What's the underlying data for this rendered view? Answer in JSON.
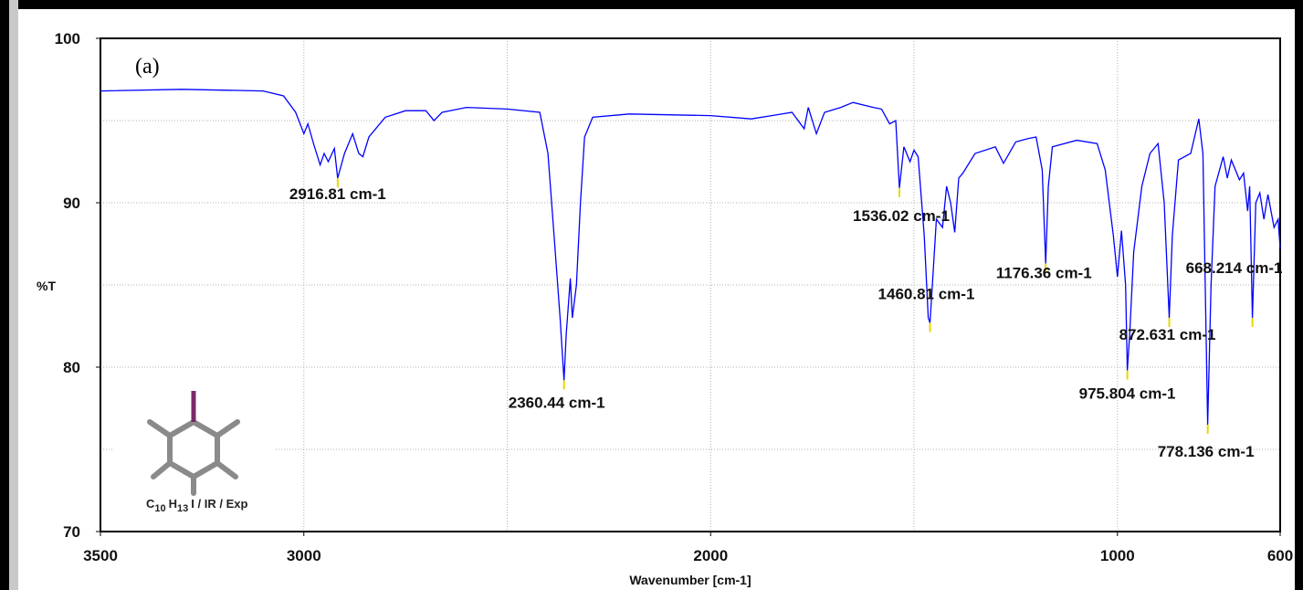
{
  "chart_data": {
    "type": "line",
    "panel_label": "(a)",
    "ylabel": "%T",
    "xlabel": "Wavenumber [cm-1]",
    "color": "#0000ff",
    "xlim": [
      3500,
      600
    ],
    "ylim": [
      70,
      100
    ],
    "xticks": [
      3500,
      3000,
      2000,
      1000,
      600
    ],
    "yticks": [
      70,
      80,
      90,
      100
    ],
    "xgrid": [
      3000,
      2500,
      2000,
      1500,
      1000
    ],
    "ygrid": [
      75,
      80,
      85,
      90,
      95
    ],
    "x": [
      3500,
      3300,
      3100,
      3050,
      3020,
      3000,
      2990,
      2975,
      2960,
      2950,
      2940,
      2925,
      2916.81,
      2900,
      2880,
      2865,
      2855,
      2840,
      2800,
      2750,
      2700,
      2680,
      2660,
      2600,
      2500,
      2420,
      2400,
      2385,
      2370,
      2360.44,
      2355,
      2345,
      2340,
      2330,
      2320,
      2310,
      2290,
      2200,
      2000,
      1900,
      1850,
      1800,
      1770,
      1760,
      1740,
      1720,
      1680,
      1650,
      1600,
      1580,
      1560,
      1545,
      1536.02,
      1525,
      1510,
      1500,
      1490,
      1475,
      1465,
      1460.81,
      1455,
      1445,
      1430,
      1420,
      1410,
      1400,
      1390,
      1380,
      1350,
      1300,
      1280,
      1250,
      1220,
      1200,
      1185,
      1176.36,
      1170,
      1160,
      1100,
      1050,
      1030,
      1010,
      1000,
      990,
      980,
      975.804,
      970,
      960,
      940,
      920,
      900,
      885,
      872.631,
      865,
      850,
      820,
      800,
      790,
      778.136,
      770,
      760,
      740,
      730,
      720,
      700,
      690,
      680,
      675,
      668.214,
      660,
      650,
      640,
      630,
      615,
      605,
      600
    ],
    "values": [
      96.8,
      96.9,
      96.8,
      96.5,
      95.5,
      94.2,
      94.8,
      93.5,
      92.3,
      93.0,
      92.5,
      93.3,
      91.5,
      93.0,
      94.2,
      93.0,
      92.8,
      94.0,
      95.2,
      95.6,
      95.6,
      95.0,
      95.5,
      95.8,
      95.7,
      95.5,
      93,
      88,
      83,
      79.2,
      82,
      85.4,
      83,
      85,
      90,
      94,
      95.2,
      95.4,
      95.3,
      95.1,
      95.3,
      95.5,
      94.5,
      95.8,
      94.2,
      95.5,
      95.8,
      96.1,
      95.8,
      95.7,
      94.8,
      95.0,
      90.9,
      93.4,
      92.5,
      93.2,
      92.8,
      88,
      83,
      82.7,
      85,
      89,
      88.5,
      91,
      90,
      88.2,
      91.5,
      91.8,
      93,
      93.4,
      92.4,
      93.7,
      93.9,
      94.0,
      92,
      86.3,
      91,
      93.4,
      93.8,
      93.6,
      92,
      88,
      85.5,
      88.3,
      85,
      79.8,
      82,
      87,
      91,
      93,
      93.6,
      90,
      83,
      88,
      92.6,
      93,
      95.1,
      93,
      76.5,
      85,
      91,
      92.8,
      91.5,
      92.6,
      91.4,
      91.8,
      89.5,
      91,
      83,
      90,
      90.6,
      89,
      90.5,
      88.5,
      89.0,
      87.2
    ],
    "annotations": [
      {
        "text": "2916.81 cm-1",
        "x": 2916.81,
        "y": 91.5
      },
      {
        "text": "2360.44 cm-1",
        "x": 2360.44,
        "y": 79.2
      },
      {
        "text": "1536.02 cm-1",
        "x": 1536.02,
        "y": 90.9
      },
      {
        "text": "1460.81 cm-1",
        "x": 1460.81,
        "y": 82.7
      },
      {
        "text": "1176.36 cm-1",
        "x": 1176.36,
        "y": 86.3
      },
      {
        "text": "872.631 cm-1",
        "x": 872.631,
        "y": 83
      },
      {
        "text": "975.804 cm-1",
        "x": 975.804,
        "y": 79.8
      },
      {
        "text": "778.136 cm-1",
        "x": 778.136,
        "y": 76.5
      },
      {
        "text": "668.214 cm-1",
        "x": 668.214,
        "y": 83
      }
    ],
    "inset_label": {
      "parts": [
        "C",
        "10",
        "H",
        "13",
        "I / IR / Exp"
      ]
    }
  }
}
